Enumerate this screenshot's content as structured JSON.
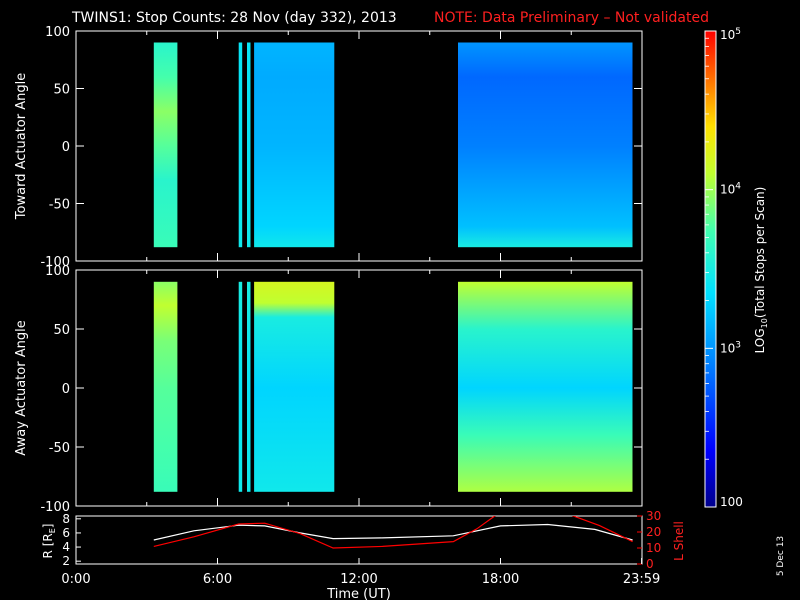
{
  "title": "TWINS1: Stop Counts: 28 Nov (day 332), 2013",
  "note": "NOTE: Data Preliminary – Not validated",
  "date_stamp": "5 Dec 13",
  "colors": {
    "title": "#ffffff",
    "note": "#ff2020",
    "lshell": "#ff0000",
    "radius": "#ffffff",
    "frame": "#ffffff"
  },
  "colorbar": {
    "label_prefix": "LOG",
    "label_sub": "10",
    "label_suffix": "(Total Stops per Scan)",
    "tick_labels": [
      {
        "base": "10",
        "exp": "5"
      },
      {
        "base": "10",
        "exp": "4"
      },
      {
        "base": "10",
        "exp": "3"
      },
      {
        "base": "100",
        "exp": ""
      }
    ],
    "log_min": 2,
    "log_max": 5
  },
  "chart_data": [
    {
      "type": "heatmap",
      "ylabel": "Toward Actuator Angle",
      "ylim": [
        -100,
        100
      ],
      "y_ticks": [
        "-100",
        "-50",
        "0",
        "50",
        "100"
      ],
      "x_range_hours": [
        0,
        24
      ],
      "y_range_deg": [
        -88,
        90
      ],
      "blocks": [
        {
          "t_start": 3.3,
          "t_end": 4.3,
          "profile": [
            [
              -88,
              3.7
            ],
            [
              -60,
              3.65
            ],
            [
              -30,
              3.6
            ],
            [
              0,
              3.8
            ],
            [
              30,
              3.95
            ],
            [
              60,
              3.75
            ],
            [
              90,
              3.6
            ]
          ]
        },
        {
          "t_start": 6.9,
          "t_end": 7.05,
          "profile": [
            [
              -88,
              3.45
            ],
            [
              0,
              3.4
            ],
            [
              90,
              3.4
            ]
          ]
        },
        {
          "t_start": 7.25,
          "t_end": 7.4,
          "profile": [
            [
              -88,
              3.45
            ],
            [
              0,
              3.4
            ],
            [
              90,
              3.4
            ]
          ]
        },
        {
          "t_start": 7.55,
          "t_end": 10.95,
          "profile": [
            [
              -88,
              3.45
            ],
            [
              -70,
              3.3
            ],
            [
              0,
              3.15
            ],
            [
              60,
              3.1
            ],
            [
              90,
              3.15
            ]
          ]
        },
        {
          "t_start": 16.2,
          "t_end": 23.6,
          "profile": [
            [
              -88,
              3.5
            ],
            [
              -70,
              3.2
            ],
            [
              0,
              2.9
            ],
            [
              60,
              2.8
            ],
            [
              90,
              3.0
            ]
          ]
        }
      ]
    },
    {
      "type": "heatmap",
      "ylabel": "Away Actuator Angle",
      "ylim": [
        -100,
        100
      ],
      "y_ticks": [
        "-100",
        "-50",
        "0",
        "50",
        "100"
      ],
      "x_range_hours": [
        0,
        24
      ],
      "y_range_deg": [
        -88,
        90
      ],
      "blocks": [
        {
          "t_start": 3.3,
          "t_end": 4.3,
          "profile": [
            [
              -88,
              3.7
            ],
            [
              -50,
              3.75
            ],
            [
              0,
              3.8
            ],
            [
              40,
              3.9
            ],
            [
              70,
              4.1
            ],
            [
              90,
              3.95
            ]
          ]
        },
        {
          "t_start": 6.9,
          "t_end": 7.05,
          "profile": [
            [
              -88,
              3.45
            ],
            [
              0,
              3.4
            ],
            [
              90,
              3.5
            ]
          ]
        },
        {
          "t_start": 7.25,
          "t_end": 7.4,
          "profile": [
            [
              -88,
              3.45
            ],
            [
              0,
              3.4
            ],
            [
              90,
              3.5
            ]
          ]
        },
        {
          "t_start": 7.55,
          "t_end": 10.95,
          "profile": [
            [
              -88,
              3.45
            ],
            [
              0,
              3.3
            ],
            [
              60,
              3.5
            ],
            [
              72,
              4.1
            ],
            [
              90,
              4.2
            ]
          ]
        },
        {
          "t_start": 16.2,
          "t_end": 23.6,
          "profile": [
            [
              -88,
              4.05
            ],
            [
              -40,
              3.7
            ],
            [
              0,
              3.3
            ],
            [
              50,
              3.6
            ],
            [
              90,
              4.1
            ]
          ]
        }
      ]
    },
    {
      "type": "line",
      "xlabel": "Time (UT)",
      "x_ticks": [
        "0:00",
        "6:00",
        "12:00",
        "18:00",
        "23:59"
      ],
      "x_tick_hours": [
        0,
        6,
        12,
        18,
        23.983
      ],
      "ylabel_left": "R [R",
      "ylabel_left_sub": "E",
      "ylabel_left_end": "]",
      "ylabel_right": "L Shell",
      "y_ticks_left": [
        "2",
        "4",
        "6",
        "8"
      ],
      "y_ticks_right": [
        "0",
        "10",
        "20",
        "30"
      ],
      "ylim_left": [
        1.6,
        8.4
      ],
      "ylim_right": [
        0,
        30
      ],
      "series": [
        {
          "color": "#ffffff",
          "axis": "left",
          "points": [
            [
              3.3,
              5.0
            ],
            [
              5.0,
              6.3
            ],
            [
              6.9,
              7.1
            ],
            [
              8.0,
              7.0
            ],
            [
              9.5,
              6.0
            ],
            [
              10.9,
              5.2
            ],
            [
              13.0,
              5.3
            ],
            [
              16.0,
              5.6
            ],
            [
              18.0,
              7.0
            ],
            [
              20.0,
              7.2
            ],
            [
              22.0,
              6.5
            ],
            [
              23.6,
              5.0
            ]
          ]
        },
        {
          "color": "#ff0000",
          "axis": "right",
          "points": [
            [
              3.3,
              11
            ],
            [
              5.0,
              17
            ],
            [
              6.9,
              25
            ],
            [
              8.0,
              25.5
            ],
            [
              9.5,
              19
            ],
            [
              10.9,
              10
            ],
            [
              13.0,
              11
            ],
            [
              16.0,
              14
            ],
            [
              17.0,
              22
            ],
            [
              17.8,
              30.5
            ]
          ]
        },
        {
          "color": "#ff0000",
          "axis": "right",
          "points": [
            [
              21.0,
              30.5
            ],
            [
              22.2,
              24
            ],
            [
              23.6,
              14
            ]
          ]
        }
      ]
    }
  ]
}
